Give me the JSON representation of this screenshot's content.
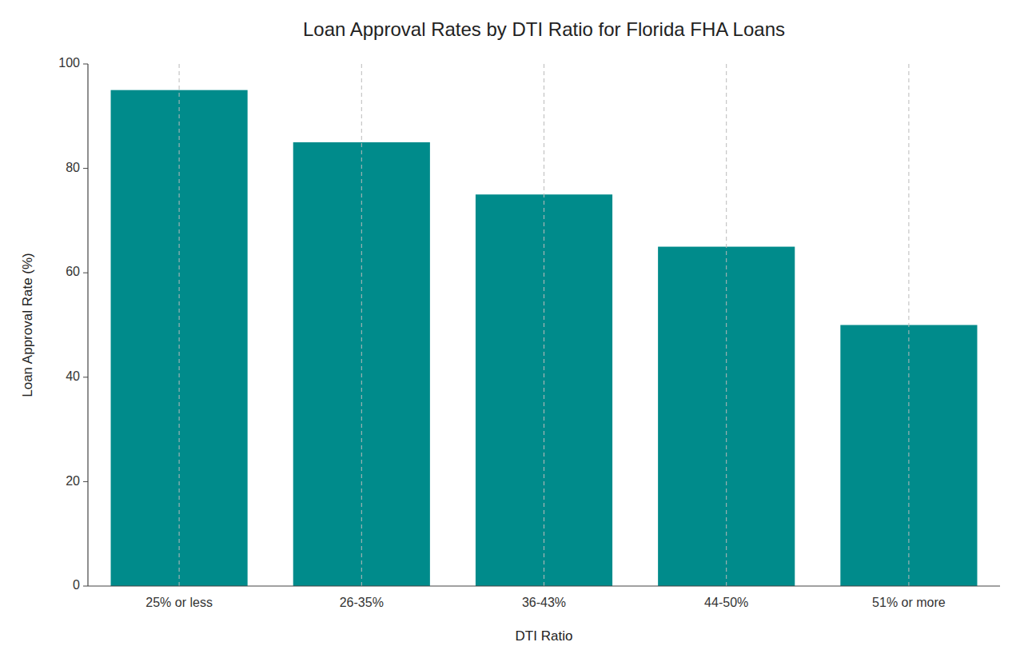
{
  "chart_data": {
    "type": "bar",
    "title": "Loan Approval Rates by DTI Ratio for Florida FHA Loans",
    "xlabel": "DTI Ratio",
    "ylabel": "Loan Approval Rate (%)",
    "categories": [
      "25% or less",
      "26-35%",
      "36-43%",
      "44-50%",
      "51% or more"
    ],
    "values": [
      95,
      85,
      75,
      65,
      50
    ],
    "color": "#008B8B",
    "ylim": [
      0,
      100
    ],
    "yticks": [
      0,
      20,
      40,
      60,
      80,
      100
    ],
    "grid": "x"
  }
}
